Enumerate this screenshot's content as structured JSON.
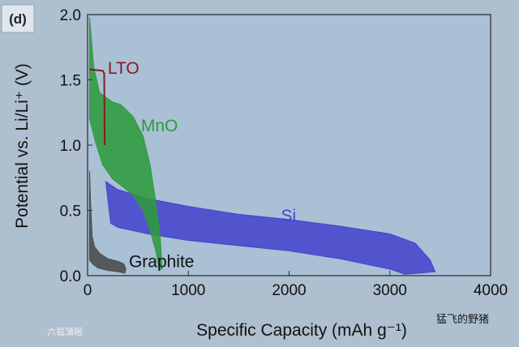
{
  "panel_label": "(d)",
  "watermark_left": "六载蒲眠",
  "watermark_right": "猛飞的野猪",
  "chart_data": {
    "type": "area",
    "xlabel": "Specific Capacity (mAh g⁻¹)",
    "ylabel": "Potential vs. Li/Li⁺ (V)",
    "xlim": [
      0,
      4000
    ],
    "ylim": [
      0,
      2.0
    ],
    "xticks": [
      0,
      1000,
      2000,
      3000,
      4000
    ],
    "yticks": [
      0.0,
      0.5,
      1.0,
      1.5,
      2.0
    ],
    "ytick_labels": [
      "0.0",
      "0.5",
      "1.0",
      "1.5",
      "2.0"
    ],
    "grid": false,
    "series": [
      {
        "name": "Si",
        "color": "#4444cc",
        "upper": [
          [
            180,
            0.72
          ],
          [
            300,
            0.66
          ],
          [
            600,
            0.59
          ],
          [
            1000,
            0.53
          ],
          [
            1500,
            0.47
          ],
          [
            2000,
            0.43
          ],
          [
            2500,
            0.38
          ],
          [
            3000,
            0.32
          ],
          [
            3250,
            0.25
          ],
          [
            3400,
            0.12
          ],
          [
            3450,
            0.03
          ]
        ],
        "lower": [
          [
            230,
            0.4
          ],
          [
            300,
            0.37
          ],
          [
            600,
            0.32
          ],
          [
            1000,
            0.27
          ],
          [
            1500,
            0.23
          ],
          [
            2000,
            0.19
          ],
          [
            2500,
            0.13
          ],
          [
            3000,
            0.05
          ],
          [
            3150,
            0.01
          ]
        ]
      },
      {
        "name": "MnO",
        "color": "#2e9a3e",
        "upper": [
          [
            20,
            1.98
          ],
          [
            60,
            1.6
          ],
          [
            120,
            1.4
          ],
          [
            250,
            1.33
          ],
          [
            330,
            1.31
          ],
          [
            450,
            1.22
          ],
          [
            550,
            1.07
          ],
          [
            620,
            0.85
          ],
          [
            680,
            0.55
          ],
          [
            720,
            0.3
          ],
          [
            740,
            0.05
          ]
        ],
        "lower": [
          [
            20,
            1.2
          ],
          [
            80,
            1.02
          ],
          [
            150,
            0.85
          ],
          [
            250,
            0.74
          ],
          [
            350,
            0.68
          ],
          [
            450,
            0.62
          ],
          [
            550,
            0.5
          ],
          [
            620,
            0.35
          ],
          [
            680,
            0.18
          ],
          [
            710,
            0.05
          ]
        ]
      },
      {
        "name": "Graphite",
        "color": "#4a4a4a",
        "upper": [
          [
            20,
            0.8
          ],
          [
            30,
            0.55
          ],
          [
            45,
            0.3
          ],
          [
            70,
            0.22
          ],
          [
            120,
            0.17
          ],
          [
            200,
            0.13
          ],
          [
            300,
            0.11
          ],
          [
            360,
            0.09
          ],
          [
            380,
            0.05
          ]
        ],
        "lower": [
          [
            20,
            0.12
          ],
          [
            50,
            0.09
          ],
          [
            100,
            0.06
          ],
          [
            200,
            0.04
          ],
          [
            300,
            0.03
          ],
          [
            370,
            0.02
          ]
        ]
      },
      {
        "name": "LTO",
        "color": "#8b1a1a",
        "line": [
          [
            20,
            1.58
          ],
          [
            150,
            1.57
          ],
          [
            165,
            1.55
          ],
          [
            170,
            1.0
          ]
        ]
      }
    ],
    "annotations": [
      {
        "text": "LTO",
        "x": 200,
        "y": 1.58
      },
      {
        "text": "MnO",
        "x": 530,
        "y": 1.14
      },
      {
        "text": "Si",
        "x": 1920,
        "y": 0.45
      },
      {
        "text": "Graphite",
        "x": 410,
        "y": 0.1
      }
    ]
  }
}
